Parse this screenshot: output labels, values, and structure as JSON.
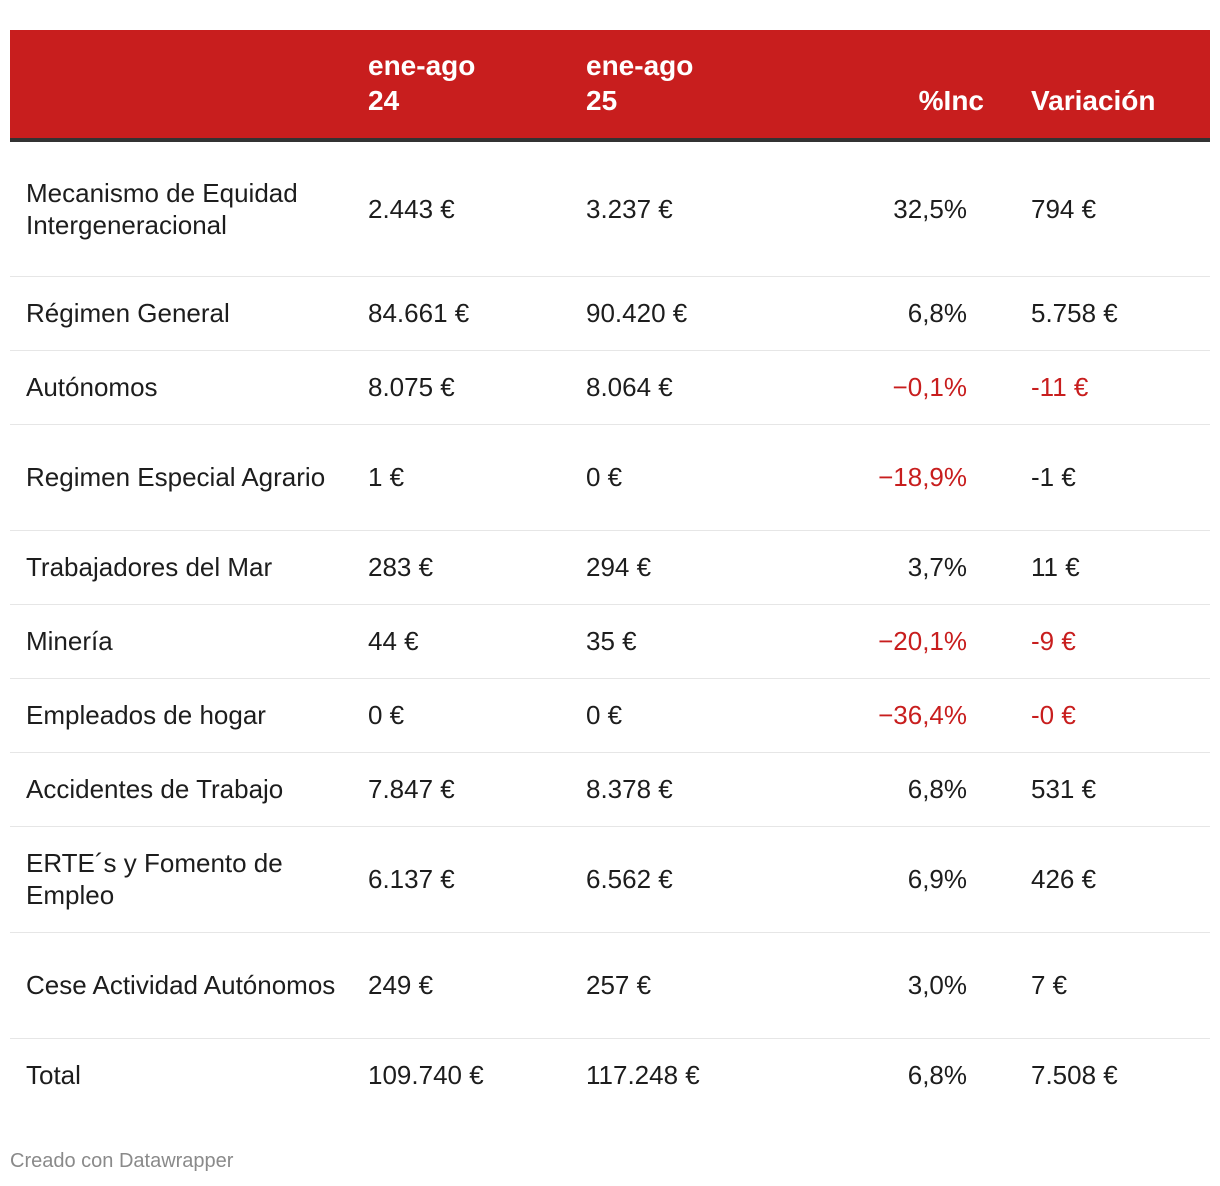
{
  "chart_data": {
    "type": "table",
    "columns": [
      "",
      "ene-ago 24",
      "ene-ago 25",
      "%Inc",
      "Variación"
    ],
    "rows": [
      {
        "label": "Mecanismo de Equidad Intergeneracional",
        "v24": "2.443 €",
        "v25": "3.237 €",
        "inc": "32,5%",
        "var": "794 €",
        "inc_neg": false,
        "var_neg": false
      },
      {
        "label": "Régimen General",
        "v24": "84.661 €",
        "v25": "90.420 €",
        "inc": "6,8%",
        "var": "5.758 €",
        "inc_neg": false,
        "var_neg": false
      },
      {
        "label": "Autónomos",
        "v24": "8.075 €",
        "v25": "8.064 €",
        "inc": "−0,1%",
        "var": "-11 €",
        "inc_neg": true,
        "var_neg": true
      },
      {
        "label": "Regimen Especial Agrario",
        "v24": "1 €",
        "v25": "0 €",
        "inc": "−18,9%",
        "var": "-1 €",
        "inc_neg": true,
        "var_neg": false
      },
      {
        "label": "Trabajadores del Mar",
        "v24": "283 €",
        "v25": "294 €",
        "inc": "3,7%",
        "var": "11 €",
        "inc_neg": false,
        "var_neg": false
      },
      {
        "label": "Minería",
        "v24": "44 €",
        "v25": "35 €",
        "inc": "−20,1%",
        "var": "-9 €",
        "inc_neg": true,
        "var_neg": true
      },
      {
        "label": "Empleados de hogar",
        "v24": "0 €",
        "v25": "0 €",
        "inc": "−36,4%",
        "var": "-0 €",
        "inc_neg": true,
        "var_neg": true
      },
      {
        "label": "Accidentes de Trabajo",
        "v24": "7.847 €",
        "v25": "8.378 €",
        "inc": "6,8%",
        "var": "531 €",
        "inc_neg": false,
        "var_neg": false
      },
      {
        "label": "ERTE´s y Fomento de Empleo",
        "v24": "6.137 €",
        "v25": "6.562 €",
        "inc": "6,9%",
        "var": "426 €",
        "inc_neg": false,
        "var_neg": false
      },
      {
        "label": "Cese Actividad Autónomos",
        "v24": "249 €",
        "v25": "257 €",
        "inc": "3,0%",
        "var": "7 €",
        "inc_neg": false,
        "var_neg": false
      },
      {
        "label": "Total",
        "v24": "109.740 €",
        "v25": "117.248 €",
        "inc": "6,8%",
        "var": "7.508 €",
        "inc_neg": false,
        "var_neg": false
      }
    ]
  },
  "header": {
    "col1_line1": "ene-ago",
    "col1_line2": "24",
    "col2_line1": "ene-ago",
    "col2_line2": "25",
    "col3": "%Inc",
    "col4": "Variación"
  },
  "footer": {
    "credit": "Creado con Datawrapper"
  },
  "colors": {
    "header_bg": "#c81e1e",
    "negative": "#c81e1e"
  }
}
